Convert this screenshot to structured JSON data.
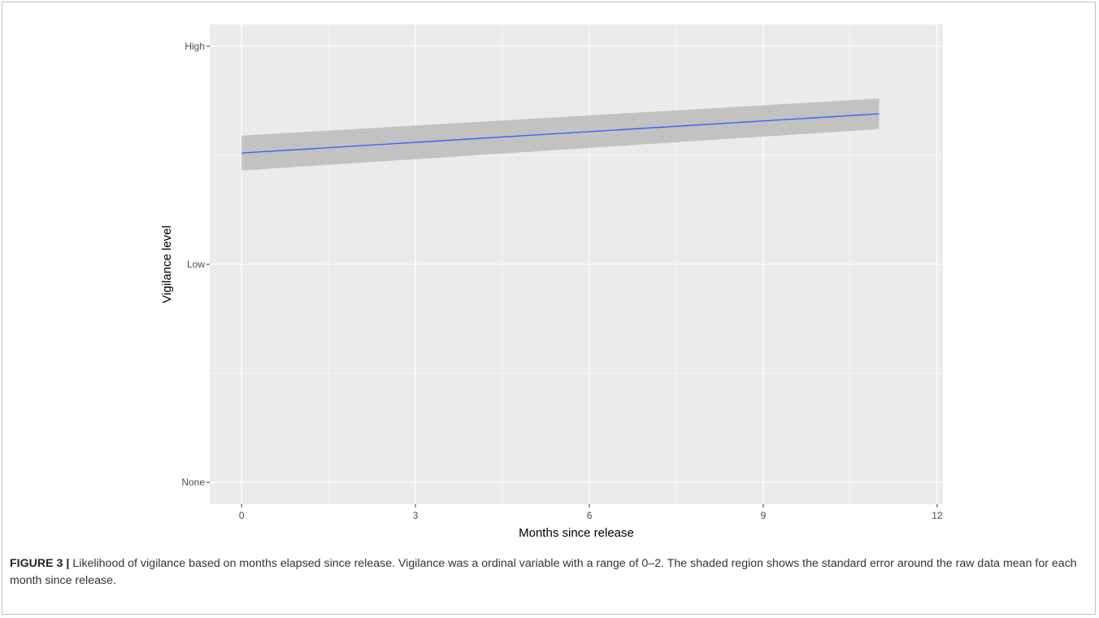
{
  "chart_data": {
    "type": "line",
    "xlabel": "Months since release",
    "ylabel": "Vigilance level",
    "xlim": [
      -0.55,
      12.1
    ],
    "ylim": [
      -0.1,
      2.1
    ],
    "x_ticks": [
      0,
      3,
      6,
      9,
      12
    ],
    "x_tick_labels": [
      "0",
      "3",
      "6",
      "9",
      "12"
    ],
    "y_ticks": [
      0,
      1,
      2
    ],
    "y_tick_labels": [
      "None",
      "Low",
      "High"
    ],
    "grid": true,
    "series": [
      {
        "x": [
          0,
          11
        ],
        "y": [
          1.51,
          1.69
        ],
        "lower": [
          1.43,
          1.62
        ],
        "upper": [
          1.59,
          1.76
        ],
        "color": "#3366FF",
        "band_color": "#c2c2c2"
      }
    ],
    "panel_color": "#EBEBEB",
    "grid_color": "#FFFFFF"
  },
  "caption": {
    "label": "FIGURE 3",
    "separator": "|",
    "text": "Likelihood of vigilance based on months elapsed since release. Vigilance was a ordinal variable with a range of 0–2. The shaded region shows the standard error around the raw data mean for each month since release."
  }
}
